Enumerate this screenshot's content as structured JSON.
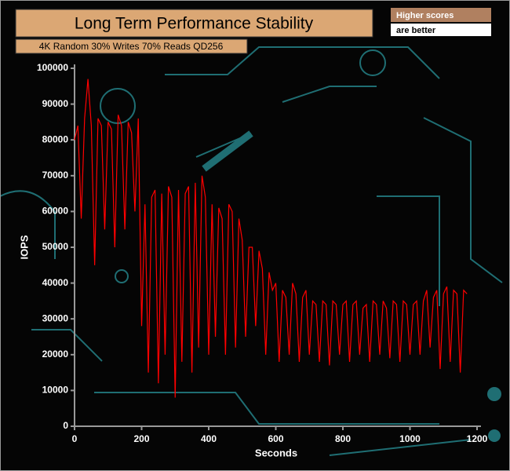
{
  "chart_data": {
    "type": "line",
    "title": "Long Term Performance Stability",
    "subtitle": "4K Random 30% Writes 70% Reads QD256",
    "badge": [
      "Higher scores",
      "are better"
    ],
    "x_label": "Seconds",
    "y_label": "IOPS",
    "xlim": [
      0,
      1200
    ],
    "xticks": [
      0,
      200,
      400,
      600,
      800,
      1000,
      1200
    ],
    "ylim": [
      0,
      100000
    ],
    "yticks": [
      0,
      10000,
      20000,
      30000,
      40000,
      50000,
      60000,
      70000,
      80000,
      90000,
      100000
    ],
    "x": [
      0,
      10,
      20,
      30,
      40,
      50,
      60,
      70,
      80,
      90,
      100,
      110,
      120,
      130,
      140,
      150,
      160,
      170,
      180,
      190,
      200,
      210,
      220,
      230,
      240,
      250,
      260,
      270,
      280,
      290,
      300,
      310,
      320,
      330,
      340,
      350,
      360,
      370,
      380,
      390,
      400,
      410,
      420,
      430,
      440,
      450,
      460,
      470,
      480,
      490,
      500,
      510,
      520,
      530,
      540,
      550,
      560,
      570,
      580,
      590,
      600,
      610,
      620,
      630,
      640,
      650,
      660,
      670,
      680,
      690,
      700,
      710,
      720,
      730,
      740,
      750,
      760,
      770,
      780,
      790,
      800,
      810,
      820,
      830,
      840,
      850,
      860,
      870,
      880,
      890,
      900,
      910,
      920,
      930,
      940,
      950,
      960,
      970,
      980,
      990,
      1000,
      1010,
      1020,
      1030,
      1040,
      1050,
      1060,
      1070,
      1080,
      1090,
      1100,
      1110,
      1120,
      1130,
      1140,
      1150,
      1160,
      1170
    ],
    "series": [
      {
        "name": "IOPS",
        "color": "#ff0000",
        "values": [
          80000,
          84000,
          58000,
          86000,
          97000,
          84000,
          45000,
          86000,
          84000,
          55000,
          85000,
          83000,
          50000,
          87000,
          84000,
          55000,
          85000,
          82000,
          60000,
          86000,
          28000,
          62000,
          15000,
          64000,
          66000,
          12000,
          65000,
          20000,
          67000,
          64000,
          8000,
          66000,
          18000,
          65000,
          67000,
          15000,
          68000,
          22000,
          70000,
          64000,
          20000,
          62000,
          25000,
          61000,
          58000,
          20000,
          62000,
          60000,
          22000,
          58000,
          52000,
          25000,
          50000,
          50000,
          28000,
          49000,
          44000,
          20000,
          43000,
          38000,
          40000,
          18000,
          38000,
          36000,
          20000,
          40000,
          37000,
          18000,
          36000,
          38000,
          20000,
          35000,
          34000,
          18000,
          35000,
          34000,
          17000,
          35000,
          34000,
          20000,
          34000,
          35000,
          18000,
          34000,
          35000,
          20000,
          33000,
          34000,
          18000,
          35000,
          34000,
          20000,
          35000,
          33000,
          19000,
          35000,
          34000,
          18000,
          35000,
          34000,
          20000,
          34000,
          35000,
          20000,
          35000,
          38000,
          22000,
          36000,
          38000,
          16000,
          37000,
          39000,
          18000,
          38000,
          37000,
          15000,
          38000,
          37000
        ]
      }
    ]
  }
}
